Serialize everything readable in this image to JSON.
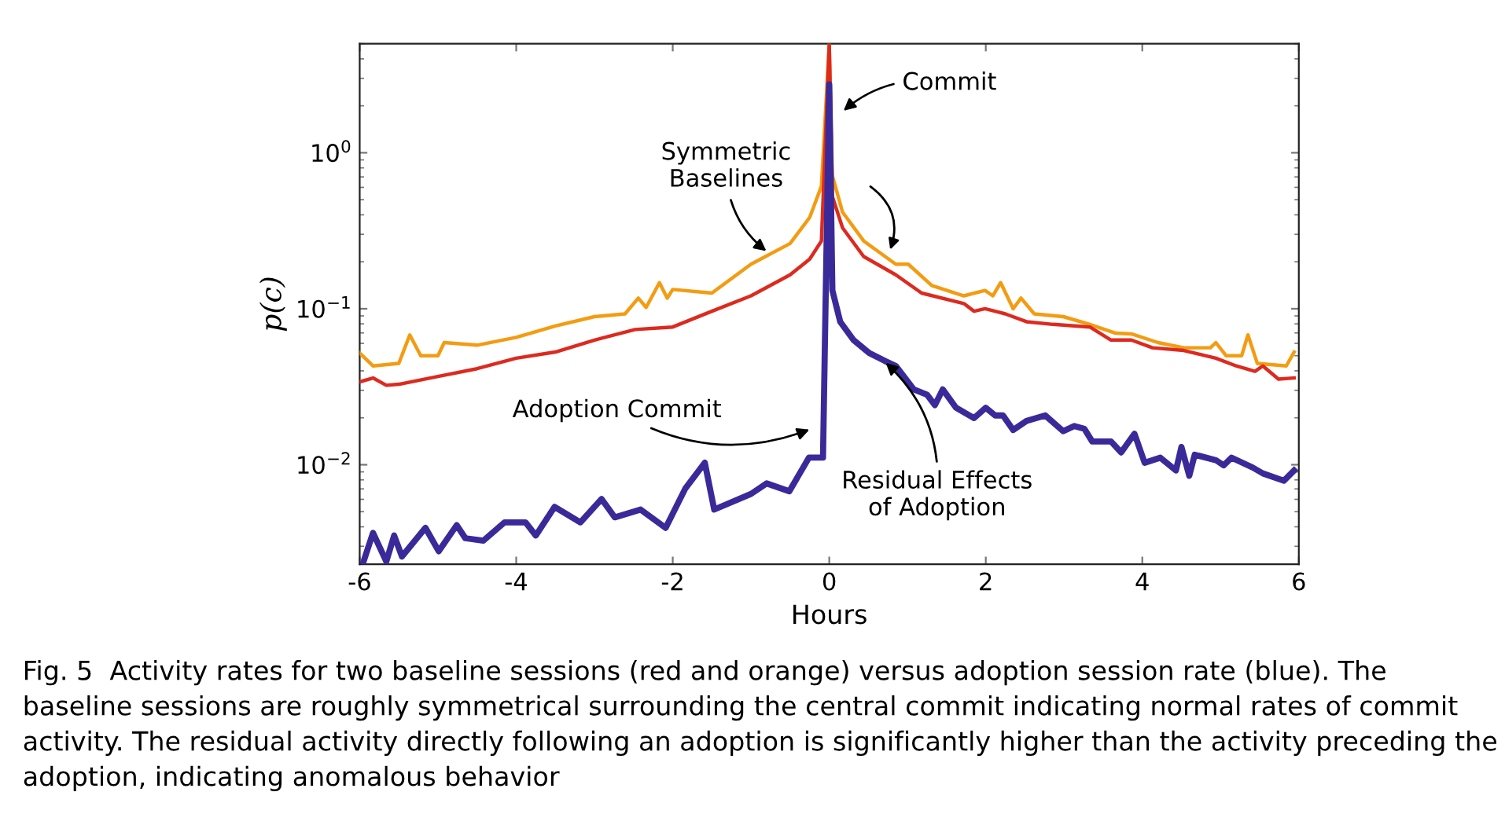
{
  "chart_data": {
    "type": "line",
    "xlabel": "Hours",
    "ylabel": "p(c)",
    "log": "y",
    "xlim": [
      -6,
      6
    ],
    "xticks": [
      -6,
      -4,
      -2,
      0,
      2,
      4,
      6
    ],
    "ylim": [
      0.0023,
      5
    ],
    "yticks": [
      {
        "value": 0.01,
        "label": "10$^{−2}$"
      },
      {
        "value": 0.1,
        "label": "10$^{−1}$"
      },
      {
        "value": 1,
        "label": "10$^{0}$"
      }
    ],
    "grid": false,
    "legend": false,
    "marker": "none",
    "line_style": "solid",
    "series": [
      {
        "color": "#f39c12",
        "x": [
          -6,
          -5.83,
          -5.5,
          -5.36,
          -5.22,
          -5,
          -4.92,
          -4.5,
          -4,
          -3.5,
          -3,
          -2.61,
          -2.44,
          -2.34,
          -2.17,
          -2.07,
          -2,
          -1.5,
          -1,
          -0.5,
          -0.25,
          -0.1,
          0,
          0.04,
          0.17,
          0.44,
          0.85,
          1.01,
          1.31,
          1.72,
          1.99,
          2.09,
          2.19,
          2.35,
          2.45,
          2.62,
          2.99,
          3.33,
          3.66,
          3.86,
          4.2,
          4.53,
          4.87,
          4.94,
          5.07,
          5.27,
          5.35,
          5.47,
          5.84,
          5.94
        ],
        "values": [
          0.052,
          0.043,
          0.0446,
          0.068,
          0.05,
          0.05,
          0.0607,
          0.0584,
          0.0655,
          0.0776,
          0.089,
          0.0927,
          0.117,
          0.102,
          0.147,
          0.117,
          0.133,
          0.126,
          0.193,
          0.262,
          0.385,
          0.611,
          5,
          0.713,
          0.416,
          0.272,
          0.193,
          0.193,
          0.141,
          0.121,
          0.131,
          0.121,
          0.147,
          0.1,
          0.117,
          0.0927,
          0.089,
          0.0794,
          0.0697,
          0.069,
          0.0607,
          0.0562,
          0.0562,
          0.0607,
          0.05,
          0.05,
          0.068,
          0.0446,
          0.043,
          0.0528
        ]
      },
      {
        "color": "#dd2a1f",
        "x": [
          -6,
          -5.83,
          -5.66,
          -5.5,
          -5,
          -4.5,
          -4,
          -3.5,
          -3,
          -2.48,
          -2,
          -1.5,
          -1,
          -0.5,
          -0.25,
          -0.1,
          0,
          0.04,
          0.17,
          0.44,
          0.85,
          1.18,
          1.72,
          1.85,
          1.99,
          2.25,
          2.52,
          2.86,
          3.33,
          3.6,
          3.86,
          4.13,
          4.53,
          4.94,
          5.2,
          5.44,
          5.54,
          5.74,
          5.94
        ],
        "values": [
          0.034,
          0.036,
          0.0323,
          0.0328,
          0.0368,
          0.0413,
          0.0482,
          0.0528,
          0.063,
          0.0736,
          0.0764,
          0.0964,
          0.121,
          0.165,
          0.208,
          0.272,
          5,
          0.524,
          0.33,
          0.216,
          0.165,
          0.126,
          0.108,
          0.0964,
          0.1,
          0.0927,
          0.0826,
          0.0794,
          0.0764,
          0.063,
          0.063,
          0.0562,
          0.054,
          0.0482,
          0.043,
          0.0397,
          0.043,
          0.0354,
          0.036
        ]
      },
      {
        "color": "#3a2a99",
        "x": [
          -5.95,
          -5.83,
          -5.66,
          -5.56,
          -5.46,
          -5.16,
          -4.99,
          -4.76,
          -4.65,
          -4.42,
          -4.15,
          -3.88,
          -3.75,
          -3.51,
          -3.18,
          -2.91,
          -2.74,
          -2.41,
          -2.09,
          -1.84,
          -1.59,
          -1.47,
          -1,
          -0.8,
          -0.51,
          -0.26,
          -0.08,
          0,
          0.04,
          0.14,
          0.31,
          0.51,
          0.71,
          0.85,
          1.08,
          1.25,
          1.35,
          1.45,
          1.62,
          1.85,
          2,
          2.12,
          2.22,
          2.35,
          2.52,
          2.76,
          2.99,
          3.13,
          3.26,
          3.36,
          3.6,
          3.73,
          3.9,
          4.03,
          4.23,
          4.43,
          4.5,
          4.6,
          4.67,
          4.94,
          5.04,
          5.14,
          5.41,
          5.54,
          5.81,
          5.94
        ],
        "values": [
          0.0024,
          0.00366,
          0.0024,
          0.00352,
          0.00258,
          0.00394,
          0.00279,
          0.0041,
          0.00338,
          0.00326,
          0.00427,
          0.00427,
          0.00352,
          0.00537,
          0.00427,
          0.00603,
          0.0046,
          0.00516,
          0.00394,
          0.00703,
          0.0103,
          0.00516,
          0.0065,
          0.00759,
          0.00676,
          0.0111,
          0.0111,
          2.74,
          0.131,
          0.0826,
          0.063,
          0.052,
          0.0463,
          0.043,
          0.0304,
          0.0281,
          0.0241,
          0.0304,
          0.0232,
          0.0199,
          0.0232,
          0.0207,
          0.0207,
          0.0167,
          0.0191,
          0.0207,
          0.0164,
          0.0177,
          0.017,
          0.0141,
          0.0141,
          0.012,
          0.0158,
          0.0103,
          0.0111,
          0.0092,
          0.013,
          0.0085,
          0.0116,
          0.0107,
          0.0099,
          0.0111,
          0.0096,
          0.0088,
          0.0079,
          0.0092
        ]
      }
    ],
    "annotations": [
      {
        "text": "Commit",
        "x": 0.14,
        "y": 1.78
      },
      {
        "text": "Symmetric\nBaselines",
        "x": -0.76,
        "y": 0.225
      },
      {
        "text": "Adoption Commit",
        "x": -0.2,
        "y": 0.0172
      },
      {
        "text": "Residual Effects\nof Adoption",
        "x": 0.68,
        "y": 0.047
      },
      "Fig. 5  Activity rates for two baseline sessions (red and orange) versus adoption session rate (blue). The baseline sessions are roughly symmetrical surrounding the central commit indicating normal rates of commit activity. The residual activity directly following an adoption is significantly higher than the activity preceding the adoption, indicating anomalous behavior"
    ]
  }
}
